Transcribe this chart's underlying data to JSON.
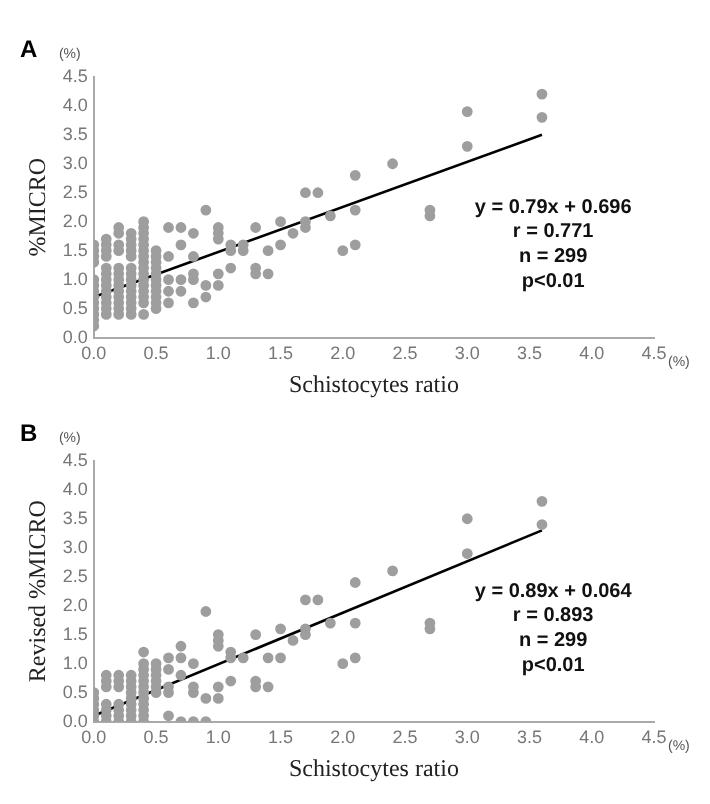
{
  "chart_data": [
    {
      "type": "scatter",
      "title": "A",
      "xlabel": "Schistocytes ratio",
      "ylabel": "%MICRO",
      "xlim": [
        0,
        4.5
      ],
      "ylim": [
        0,
        4.5
      ],
      "xticks": [
        {
          "value": 0,
          "label": "0.0"
        },
        {
          "value": 0.5,
          "label": "0.5"
        },
        {
          "value": 1,
          "label": "1.0"
        },
        {
          "value": 1.5,
          "label": "1.5"
        },
        {
          "value": 2,
          "label": "2.0"
        },
        {
          "value": 2.5,
          "label": "2.5"
        },
        {
          "value": 3,
          "label": "3.0"
        },
        {
          "value": 3.5,
          "label": "3.5"
        },
        {
          "value": 4,
          "label": "4.0"
        },
        {
          "value": 4.5,
          "label": "4.5"
        }
      ],
      "yticks": [
        {
          "value": 0,
          "label": "0.0"
        },
        {
          "value": 0.5,
          "label": "0.5"
        },
        {
          "value": 1,
          "label": "1.0"
        },
        {
          "value": 1.5,
          "label": "1.5"
        },
        {
          "value": 2,
          "label": "2.0"
        },
        {
          "value": 2.5,
          "label": "2.5"
        },
        {
          "value": 3,
          "label": "3.0"
        },
        {
          "value": 3.5,
          "label": "3.5"
        },
        {
          "value": 4,
          "label": "4.0"
        },
        {
          "value": 4.5,
          "label": "4.5"
        }
      ],
      "grid": false,
      "legend": false,
      "marker": "circle",
      "annotations": [
        "(%)",
        "(%)",
        "y = 0.79x + 0.696",
        "r = 0.771",
        "n = 299",
        "p<0.01"
      ],
      "series": [
        {
          "type": "scatter",
          "color": "#9e9e9e",
          "x": [
            0,
            0,
            0,
            0,
            0,
            0,
            0,
            0,
            0,
            0,
            0,
            0,
            0,
            0.1,
            0.1,
            0.1,
            0.1,
            0.1,
            0.1,
            0.1,
            0.1,
            0.1,
            0.1,
            0.1,
            0.1,
            0.1,
            0.2,
            0.2,
            0.2,
            0.2,
            0.2,
            0.2,
            0.2,
            0.2,
            0.2,
            0.2,
            0.2,
            0.2,
            0.2,
            0.3,
            0.3,
            0.3,
            0.3,
            0.3,
            0.3,
            0.3,
            0.3,
            0.3,
            0.3,
            0.3,
            0.3,
            0.3,
            0.3,
            0.4,
            0.4,
            0.4,
            0.4,
            0.4,
            0.4,
            0.4,
            0.4,
            0.4,
            0.4,
            0.4,
            0.4,
            0.4,
            0.4,
            0.4,
            0.4,
            0.5,
            0.5,
            0.5,
            0.5,
            0.5,
            0.5,
            0.5,
            0.5,
            0.5,
            0.5,
            0.5,
            0.6,
            0.6,
            0.6,
            0.6,
            0.6,
            0.7,
            0.7,
            0.7,
            0.7,
            0.8,
            0.8,
            0.8,
            0.8,
            0.8,
            0.9,
            0.9,
            0.9,
            1.0,
            1.0,
            1.0,
            1.0,
            1.0,
            1.1,
            1.1,
            1.1,
            1.2,
            1.2,
            1.3,
            1.3,
            1.3,
            1.4,
            1.4,
            1.5,
            1.5,
            1.6,
            1.7,
            1.7,
            1.7,
            1.8,
            1.9,
            2.0,
            2.1,
            2.1,
            2.1,
            2.4,
            2.7,
            2.7,
            3.0,
            3.0,
            3.6,
            3.6
          ],
          "values": [
            0.2,
            0.3,
            0.4,
            0.5,
            0.6,
            0.7,
            0.8,
            0.9,
            1.0,
            1.3,
            1.4,
            1.5,
            1.6,
            0.4,
            0.5,
            0.6,
            0.7,
            0.8,
            0.9,
            1.0,
            1.1,
            1.2,
            1.4,
            1.5,
            1.6,
            1.7,
            0.4,
            0.5,
            0.6,
            0.7,
            0.8,
            0.9,
            1.0,
            1.1,
            1.2,
            1.5,
            1.6,
            1.8,
            1.9,
            0.4,
            0.5,
            0.6,
            0.7,
            0.8,
            0.9,
            1.0,
            1.1,
            1.2,
            1.4,
            1.5,
            1.6,
            1.7,
            1.8,
            0.4,
            0.6,
            0.7,
            0.8,
            0.9,
            1.0,
            1.1,
            1.2,
            1.3,
            1.4,
            1.5,
            1.6,
            1.7,
            1.8,
            1.9,
            2.0,
            0.5,
            0.6,
            0.7,
            0.8,
            0.9,
            1.0,
            1.1,
            1.2,
            1.3,
            1.4,
            1.5,
            0.6,
            0.8,
            1.0,
            1.4,
            1.9,
            0.8,
            1.0,
            1.6,
            1.9,
            0.6,
            1.0,
            1.1,
            1.4,
            1.8,
            0.7,
            0.9,
            2.2,
            0.9,
            1.1,
            1.7,
            1.8,
            1.9,
            1.2,
            1.5,
            1.6,
            1.5,
            1.6,
            1.1,
            1.2,
            1.9,
            1.1,
            1.5,
            1.6,
            2.0,
            1.8,
            1.9,
            2.0,
            2.5,
            2.5,
            2.1,
            1.5,
            1.6,
            2.2,
            2.8,
            3.0,
            2.1,
            2.2,
            3.3,
            3.9,
            3.8,
            4.2
          ]
        },
        {
          "type": "line",
          "color": "#000000",
          "marker": "none",
          "x": [
            0,
            3.6
          ],
          "values": [
            0.7,
            3.5
          ]
        }
      ]
    },
    {
      "type": "scatter",
      "title": "B",
      "xlabel": "Schistocytes ratio",
      "ylabel": "Revised %MICRO",
      "xlim": [
        0,
        4.5
      ],
      "ylim": [
        0,
        4.5
      ],
      "xticks": [
        {
          "value": 0,
          "label": "0.0"
        },
        {
          "value": 0.5,
          "label": "0.5"
        },
        {
          "value": 1,
          "label": "1.0"
        },
        {
          "value": 1.5,
          "label": "1.5"
        },
        {
          "value": 2,
          "label": "2.0"
        },
        {
          "value": 2.5,
          "label": "2.5"
        },
        {
          "value": 3,
          "label": "3.0"
        },
        {
          "value": 3.5,
          "label": "3.5"
        },
        {
          "value": 4,
          "label": "4.0"
        },
        {
          "value": 4.5,
          "label": "4.5"
        }
      ],
      "yticks": [
        {
          "value": 0,
          "label": "0.0"
        },
        {
          "value": 0.5,
          "label": "0.5"
        },
        {
          "value": 1,
          "label": "1.0"
        },
        {
          "value": 1.5,
          "label": "1.5"
        },
        {
          "value": 2,
          "label": "2.0"
        },
        {
          "value": 2.5,
          "label": "2.5"
        },
        {
          "value": 3,
          "label": "3.0"
        },
        {
          "value": 3.5,
          "label": "3.5"
        },
        {
          "value": 4,
          "label": "4.0"
        },
        {
          "value": 4.5,
          "label": "4.5"
        }
      ],
      "grid": false,
      "legend": false,
      "marker": "circle",
      "annotations": [
        "(%)",
        "(%)",
        "y = 0.89x + 0.064",
        "r = 0.893",
        "n = 299",
        "p<0.01"
      ],
      "series": [
        {
          "type": "scatter",
          "color": "#9e9e9e",
          "x": [
            0,
            0,
            0,
            0,
            0,
            0,
            0.1,
            0.1,
            0.1,
            0.1,
            0.1,
            0.1,
            0.1,
            0.2,
            0.2,
            0.2,
            0.2,
            0.2,
            0.2,
            0.2,
            0.3,
            0.3,
            0.3,
            0.3,
            0.3,
            0.3,
            0.3,
            0.3,
            0.3,
            0.4,
            0.4,
            0.4,
            0.4,
            0.4,
            0.4,
            0.4,
            0.4,
            0.4,
            0.4,
            0.4,
            0.4,
            0.5,
            0.5,
            0.5,
            0.5,
            0.5,
            0.5,
            0.6,
            0.6,
            0.6,
            0.6,
            0.6,
            0.7,
            0.7,
            0.7,
            0.7,
            0.8,
            0.8,
            0.8,
            0.8,
            0.9,
            0.9,
            0.9,
            1.0,
            1.0,
            1.0,
            1.0,
            1.0,
            1.1,
            1.1,
            1.1,
            1.2,
            1.3,
            1.3,
            1.3,
            1.4,
            1.4,
            1.5,
            1.5,
            1.6,
            1.7,
            1.7,
            1.7,
            1.8,
            1.9,
            2.0,
            2.1,
            2.1,
            2.1,
            2.4,
            2.7,
            2.7,
            3.0,
            3.0,
            3.6,
            3.6
          ],
          "values": [
            0.0,
            0.1,
            0.2,
            0.3,
            0.4,
            0.5,
            0.0,
            0.1,
            0.2,
            0.3,
            0.6,
            0.7,
            0.8,
            0.0,
            0.1,
            0.2,
            0.3,
            0.6,
            0.7,
            0.8,
            0.0,
            0.1,
            0.2,
            0.3,
            0.4,
            0.5,
            0.6,
            0.7,
            0.8,
            0.0,
            0.1,
            0.2,
            0.3,
            0.4,
            0.5,
            0.6,
            0.7,
            0.8,
            0.9,
            1.0,
            1.2,
            0.5,
            0.6,
            0.7,
            0.8,
            0.9,
            1.0,
            0.1,
            0.5,
            0.6,
            0.9,
            1.1,
            0.0,
            0.8,
            1.1,
            1.3,
            0.0,
            0.5,
            0.6,
            1.0,
            0.0,
            0.4,
            1.9,
            0.4,
            0.6,
            1.3,
            1.4,
            1.5,
            0.7,
            1.1,
            1.2,
            1.1,
            0.6,
            0.7,
            1.5,
            0.6,
            1.1,
            1.1,
            1.6,
            1.4,
            1.5,
            1.6,
            2.1,
            2.1,
            1.7,
            1.0,
            1.1,
            1.7,
            2.4,
            2.6,
            1.6,
            1.7,
            2.9,
            3.5,
            3.4,
            3.8
          ]
        },
        {
          "type": "line",
          "color": "#000000",
          "marker": "none",
          "x": [
            0,
            3.6
          ],
          "values": [
            0.1,
            3.3
          ]
        }
      ]
    }
  ]
}
